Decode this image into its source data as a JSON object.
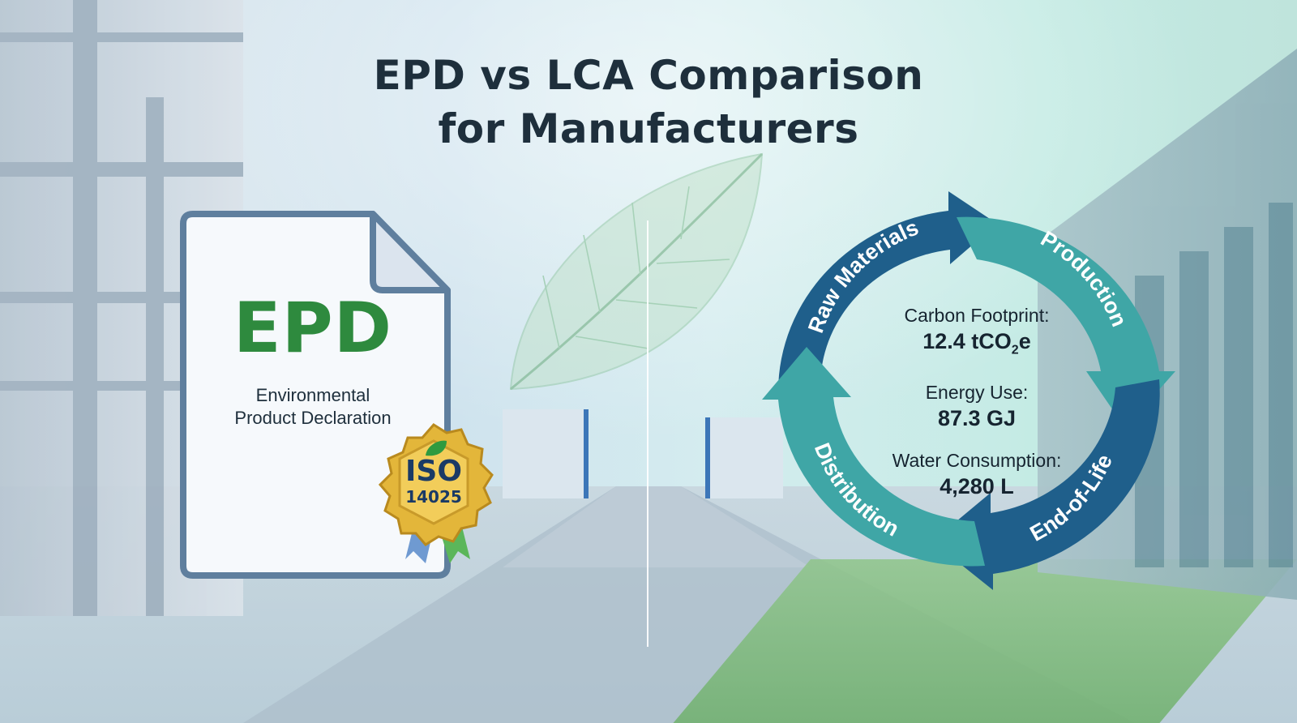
{
  "title": {
    "line1": "EPD vs LCA Comparison",
    "line2": "for Manufacturers"
  },
  "epd_document": {
    "acronym": "EPD",
    "subtitle_line1": "Environmental",
    "subtitle_line2": "Product Declaration",
    "acronym_color": "#2e8a3e"
  },
  "iso_badge": {
    "label": "ISO",
    "number": "14025",
    "icon": "leaf-icon",
    "color": "#e3b63a"
  },
  "lca_cycle": {
    "stages": [
      "Raw Materials",
      "Production",
      "End-of-Life",
      "Distribution"
    ],
    "colors": {
      "dark": "#1f5f8b",
      "teal": "#3fa6a6"
    },
    "metrics": [
      {
        "label": "Carbon Footprint:",
        "value_prefix": "12.4 tCO",
        "value_sub": "2",
        "value_suffix": "e"
      },
      {
        "label": "Energy Use:",
        "value": "87.3 GJ"
      },
      {
        "label": "Water Consumption:",
        "value": "4,280 L"
      }
    ]
  }
}
